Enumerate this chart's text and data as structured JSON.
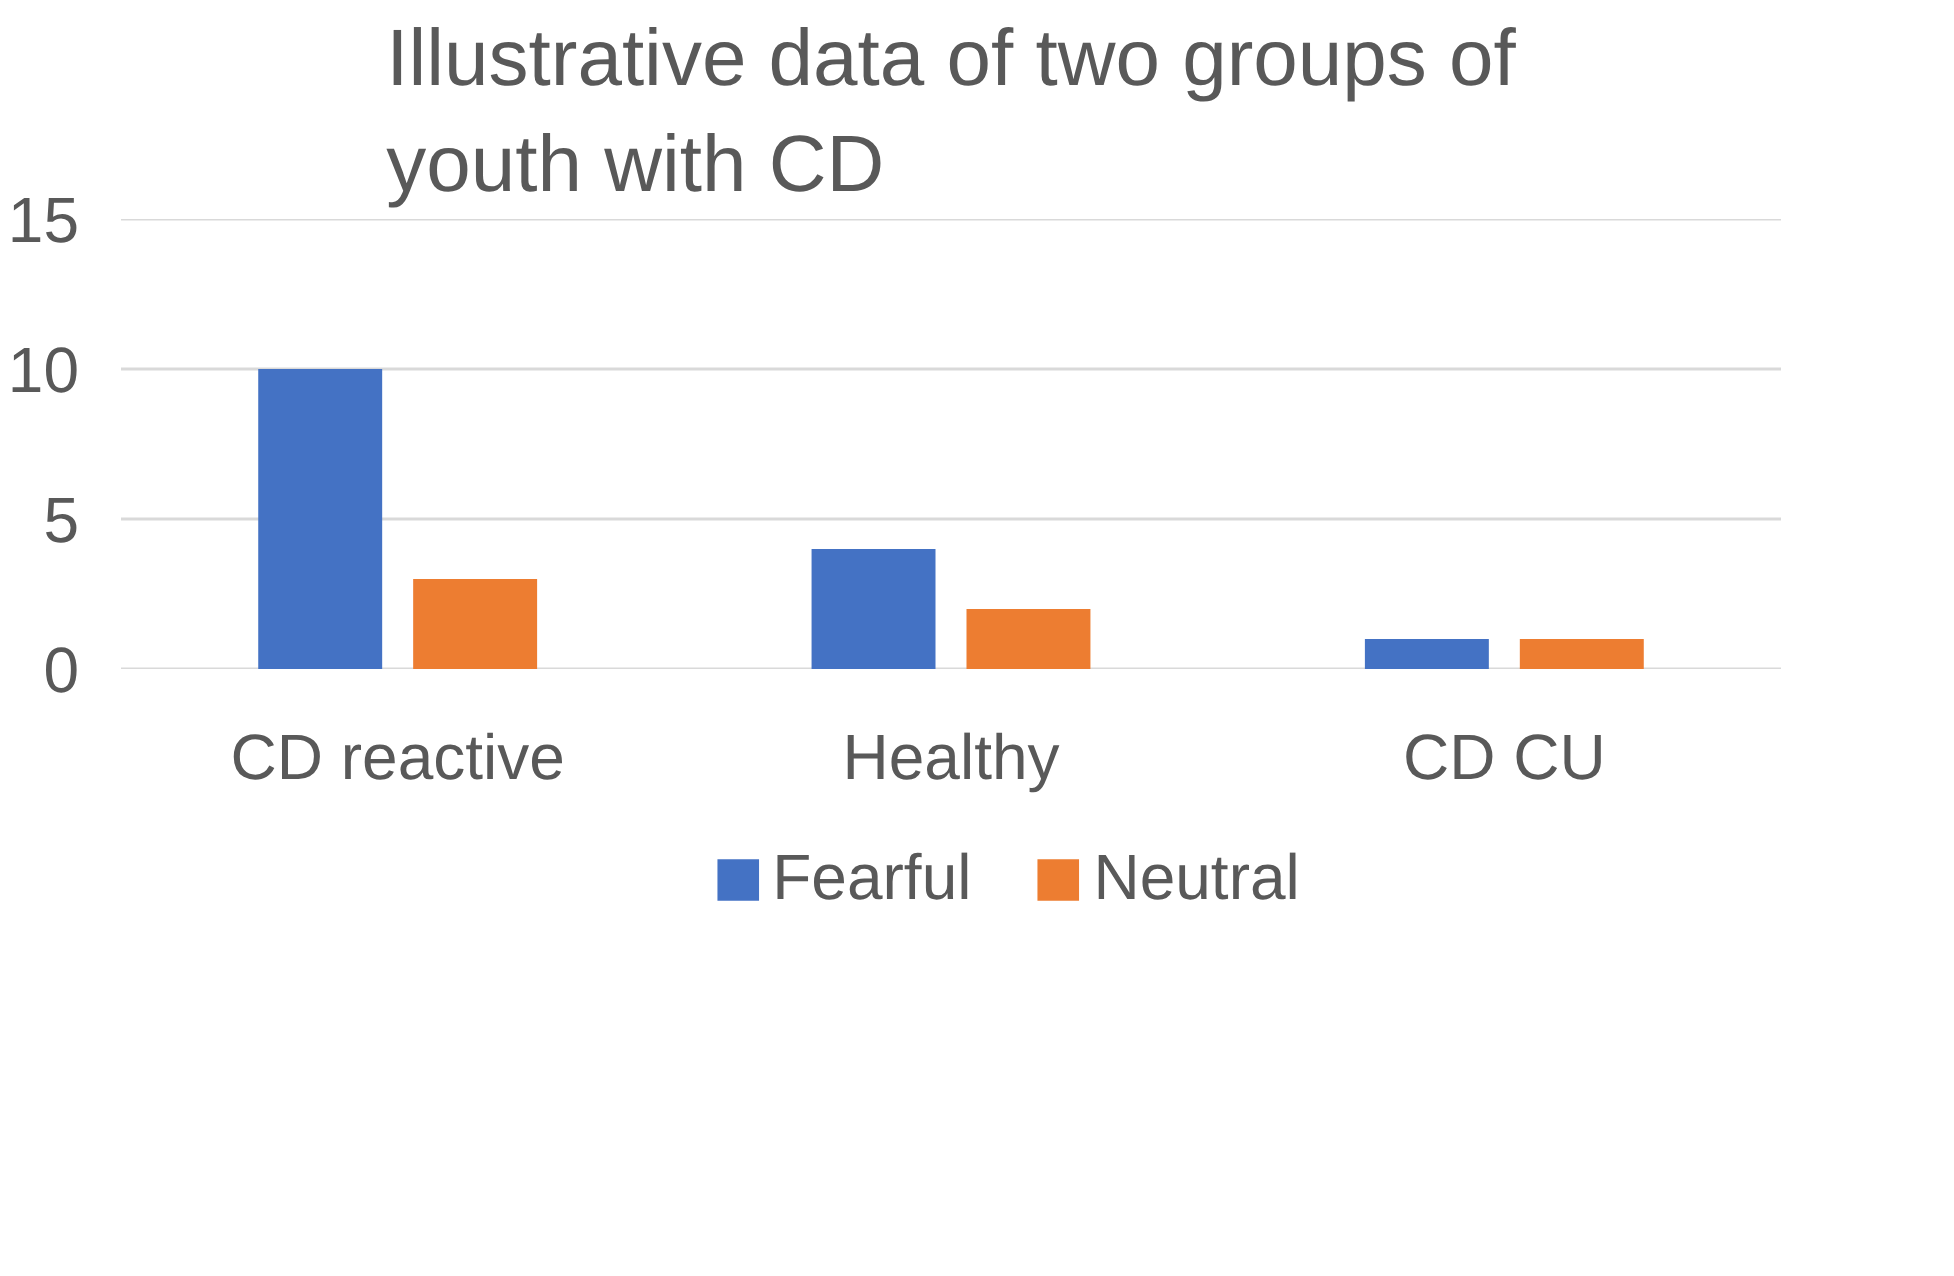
{
  "chart_data": {
    "type": "bar",
    "title": "Illustrative data of two groups of youth with CD",
    "categories": [
      "CD reactive",
      "Healthy",
      "CD CU"
    ],
    "series": [
      {
        "name": "Fearful",
        "color": "#4472c4",
        "values": [
          10,
          4,
          1
        ]
      },
      {
        "name": "Neutral",
        "color": "#ed7d31",
        "values": [
          3,
          2,
          1
        ]
      }
    ],
    "ylim": [
      0,
      15
    ],
    "yticks": [
      0,
      5,
      10,
      15
    ],
    "grid": "y",
    "legend": "bottom"
  }
}
